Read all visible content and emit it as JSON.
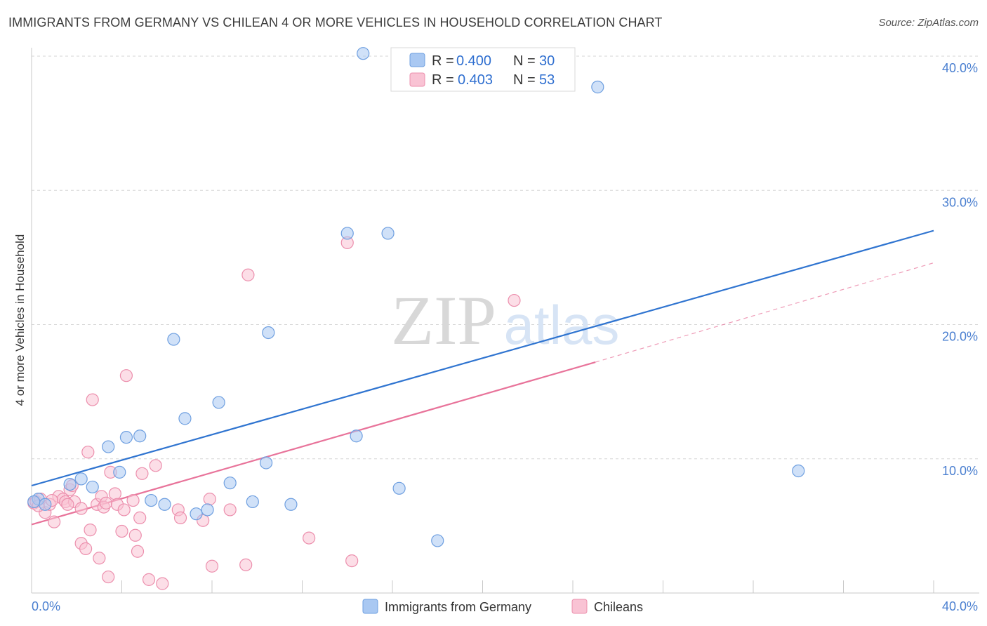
{
  "title": "IMMIGRANTS FROM GERMANY VS CHILEAN 4 OR MORE VEHICLES IN HOUSEHOLD CORRELATION CHART",
  "source": "Source: ZipAtlas.com",
  "watermark": {
    "zip": "ZIP",
    "atlas": "atlas"
  },
  "chart_data": {
    "type": "scatter",
    "ylabel": "4 or more Vehicles in Household",
    "xlim": [
      0,
      40
    ],
    "ylim": [
      0,
      40
    ],
    "x_tick_labels": [
      "0.0%",
      "40.0%"
    ],
    "y_ticks": [
      10,
      20,
      30,
      40
    ],
    "y_tick_labels": [
      "10.0%",
      "20.0%",
      "30.0%",
      "40.0%"
    ],
    "legend": [
      {
        "r_label": "R =",
        "r": "0.400",
        "n_label": "N =",
        "n": "30"
      },
      {
        "r_label": "R =",
        "r": "0.403",
        "n_label": "N =",
        "n": "53"
      }
    ],
    "series": [
      {
        "name": "Immigrants from Germany",
        "color": "#a9c8f2",
        "stroke": "#6e9fe0",
        "line_color": "#2f74d0",
        "trend": {
          "x1": 0,
          "y1": 8.0,
          "x2": 40,
          "y2": 27.0
        },
        "points": [
          [
            0.3,
            7.0
          ],
          [
            0.6,
            6.6
          ],
          [
            1.7,
            8.1
          ],
          [
            2.2,
            8.5
          ],
          [
            2.7,
            7.9
          ],
          [
            3.4,
            10.9
          ],
          [
            3.9,
            9.0
          ],
          [
            4.2,
            11.6
          ],
          [
            4.8,
            11.7
          ],
          [
            5.3,
            6.9
          ],
          [
            5.9,
            6.6
          ],
          [
            6.3,
            18.9
          ],
          [
            6.8,
            13.0
          ],
          [
            7.3,
            5.9
          ],
          [
            7.8,
            6.2
          ],
          [
            8.3,
            14.2
          ],
          [
            8.8,
            8.2
          ],
          [
            9.8,
            6.8
          ],
          [
            10.4,
            9.7
          ],
          [
            10.5,
            19.4
          ],
          [
            11.5,
            6.6
          ],
          [
            14.0,
            26.8
          ],
          [
            14.4,
            11.7
          ],
          [
            14.7,
            40.2
          ],
          [
            15.8,
            26.8
          ],
          [
            16.3,
            7.8
          ],
          [
            18.0,
            3.9
          ],
          [
            25.1,
            37.7
          ],
          [
            34.0,
            9.1
          ],
          [
            0.1,
            6.8
          ]
        ]
      },
      {
        "name": "Chileans",
        "color": "#f9c3d4",
        "stroke": "#ec8fad",
        "line_color": "#e8739a",
        "trend": {
          "x1": 0,
          "y1": 5.1,
          "x2": 25.0,
          "y2": 17.2
        },
        "trend_ext": {
          "x1": 25.0,
          "y1": 17.2,
          "x2": 40,
          "y2": 24.6
        },
        "points": [
          [
            0.1,
            6.7
          ],
          [
            0.2,
            6.8
          ],
          [
            0.4,
            7.0
          ],
          [
            0.6,
            6.0
          ],
          [
            0.8,
            6.6
          ],
          [
            1.0,
            5.3
          ],
          [
            1.2,
            7.2
          ],
          [
            1.4,
            7.0
          ],
          [
            1.5,
            6.8
          ],
          [
            1.7,
            7.7
          ],
          [
            1.8,
            8.0
          ],
          [
            1.9,
            6.8
          ],
          [
            2.2,
            6.3
          ],
          [
            2.2,
            3.7
          ],
          [
            2.4,
            3.3
          ],
          [
            2.5,
            10.5
          ],
          [
            2.6,
            4.7
          ],
          [
            2.7,
            14.4
          ],
          [
            2.9,
            6.6
          ],
          [
            3.0,
            2.6
          ],
          [
            3.1,
            7.2
          ],
          [
            3.2,
            6.4
          ],
          [
            3.3,
            6.7
          ],
          [
            3.4,
            1.2
          ],
          [
            3.5,
            9.0
          ],
          [
            3.7,
            7.4
          ],
          [
            3.8,
            6.6
          ],
          [
            4.0,
            4.6
          ],
          [
            4.1,
            6.2
          ],
          [
            4.2,
            16.2
          ],
          [
            4.5,
            6.9
          ],
          [
            4.6,
            4.3
          ],
          [
            4.7,
            3.1
          ],
          [
            4.8,
            5.6
          ],
          [
            4.9,
            8.9
          ],
          [
            5.2,
            1.0
          ],
          [
            5.5,
            9.5
          ],
          [
            5.8,
            0.7
          ],
          [
            6.5,
            6.2
          ],
          [
            6.6,
            5.6
          ],
          [
            7.6,
            5.4
          ],
          [
            7.9,
            7.0
          ],
          [
            8.0,
            2.0
          ],
          [
            8.8,
            6.2
          ],
          [
            9.5,
            2.1
          ],
          [
            9.6,
            23.7
          ],
          [
            12.3,
            4.1
          ],
          [
            14.0,
            26.1
          ],
          [
            14.2,
            2.4
          ],
          [
            21.4,
            21.8
          ],
          [
            0.3,
            6.5
          ],
          [
            0.9,
            6.9
          ],
          [
            1.6,
            6.6
          ]
        ]
      }
    ]
  }
}
